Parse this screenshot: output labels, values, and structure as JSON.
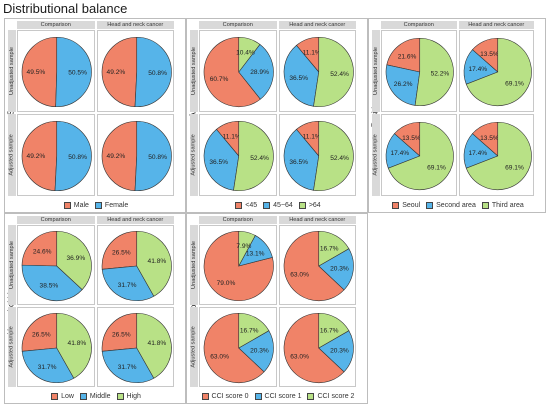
{
  "title": "Distributional balance",
  "colors": [
    "#F08368",
    "#56B4E9",
    "#B8E186"
  ],
  "column_headers": [
    "Comparison",
    "Head and neck cancer"
  ],
  "row_headers": [
    "Unadjusted sample",
    "Adjusted sample"
  ],
  "chart_data": [
    {
      "type": "pie",
      "variable": "Sex",
      "categories": [
        "Male",
        "Female"
      ],
      "panels": [
        {
          "row": "Unadjusted sample",
          "column": "Comparison",
          "values": [
            49.5,
            50.5
          ],
          "labels": [
            "49.5%",
            "50.5%"
          ]
        },
        {
          "row": "Unadjusted sample",
          "column": "Head and neck cancer",
          "values": [
            49.2,
            50.8
          ],
          "labels": [
            "49.2%",
            "50.8%"
          ]
        },
        {
          "row": "Adjusted sample",
          "column": "Comparison",
          "values": [
            49.2,
            50.8
          ],
          "labels": [
            "49.2%",
            "50.8%"
          ]
        },
        {
          "row": "Adjusted sample",
          "column": "Head and neck cancer",
          "values": [
            49.2,
            50.8
          ],
          "labels": [
            "49.2%",
            "50.8%"
          ]
        }
      ]
    },
    {
      "type": "pie",
      "variable": "Ages",
      "categories": [
        "<45",
        "45~64",
        ">64"
      ],
      "panels": [
        {
          "row": "Unadjusted sample",
          "column": "Comparison",
          "values": [
            60.7,
            28.9,
            10.4
          ],
          "labels": [
            "60.7%",
            "28.9%",
            "10.4%"
          ]
        },
        {
          "row": "Unadjusted sample",
          "column": "Head and neck cancer",
          "values": [
            11.1,
            36.5,
            52.4
          ],
          "labels": [
            "11.1%",
            "36.5%",
            "52.4%"
          ]
        },
        {
          "row": "Adjusted sample",
          "column": "Comparison",
          "values": [
            11.1,
            36.5,
            52.4
          ],
          "labels": [
            "11.1%",
            "36.5%",
            "52.4%"
          ]
        },
        {
          "row": "Adjusted sample",
          "column": "Head and neck cancer",
          "values": [
            11.1,
            36.5,
            52.4
          ],
          "labels": [
            "11.1%",
            "36.5%",
            "52.4%"
          ]
        }
      ]
    },
    {
      "type": "pie",
      "variable": "Residence",
      "categories": [
        "Seoul",
        "Second area",
        "Third area"
      ],
      "panels": [
        {
          "row": "Unadjusted sample",
          "column": "Comparison",
          "values": [
            21.6,
            26.2,
            52.2
          ],
          "labels": [
            "21.6%",
            "26.2%",
            "52.2%"
          ]
        },
        {
          "row": "Unadjusted sample",
          "column": "Head and neck cancer",
          "values": [
            13.5,
            17.4,
            69.1
          ],
          "labels": [
            "13.5%",
            "17.4%",
            "69.1%"
          ]
        },
        {
          "row": "Adjusted sample",
          "column": "Comparison",
          "values": [
            13.5,
            17.4,
            69.1
          ],
          "labels": [
            "13.5%",
            "17.4%",
            "69.1%"
          ]
        },
        {
          "row": "Adjusted sample",
          "column": "Head and neck cancer",
          "values": [
            13.5,
            17.4,
            69.1
          ],
          "labels": [
            "13.5%",
            "17.4%",
            "69.1%"
          ]
        }
      ]
    },
    {
      "type": "pie",
      "variable": "Household income",
      "categories": [
        "Low",
        "Middle",
        "High"
      ],
      "panels": [
        {
          "row": "Unadjusted sample",
          "column": "Comparison",
          "values": [
            24.6,
            38.5,
            36.9
          ],
          "labels": [
            "24.6%",
            "38.5%",
            "36.9%"
          ]
        },
        {
          "row": "Unadjusted sample",
          "column": "Head and neck cancer",
          "values": [
            26.5,
            31.7,
            41.8
          ],
          "labels": [
            "26.5%",
            "31.7%",
            "41.8%"
          ]
        },
        {
          "row": "Adjusted sample",
          "column": "Comparison",
          "values": [
            26.5,
            31.7,
            41.8
          ],
          "labels": [
            "26.5%",
            "31.7%",
            "41.8%"
          ]
        },
        {
          "row": "Adjusted sample",
          "column": "Head and neck cancer",
          "values": [
            26.5,
            31.7,
            41.8
          ],
          "labels": [
            "26.5%",
            "31.7%",
            "41.8%"
          ]
        }
      ]
    },
    {
      "type": "pie",
      "variable": "Comorbidities",
      "categories": [
        "CCI score 0",
        "CCI score 1",
        "CCI score 2"
      ],
      "panels": [
        {
          "row": "Unadjusted sample",
          "column": "Comparison",
          "values": [
            79.0,
            13.1,
            7.9
          ],
          "labels": [
            "79.0%",
            "13.1%",
            "7.9%"
          ]
        },
        {
          "row": "Unadjusted sample",
          "column": "Head and neck cancer",
          "values": [
            63.0,
            20.3,
            16.7
          ],
          "labels": [
            "63.0%",
            "20.3%",
            "16.7%"
          ]
        },
        {
          "row": "Adjusted sample",
          "column": "Comparison",
          "values": [
            63.0,
            20.3,
            16.7
          ],
          "labels": [
            "63.0%",
            "20.3%",
            "16.7%"
          ]
        },
        {
          "row": "Adjusted sample",
          "column": "Head and neck cancer",
          "values": [
            63.0,
            20.3,
            16.7
          ],
          "labels": [
            "63.0%",
            "20.3%",
            "16.7%"
          ]
        }
      ]
    }
  ]
}
